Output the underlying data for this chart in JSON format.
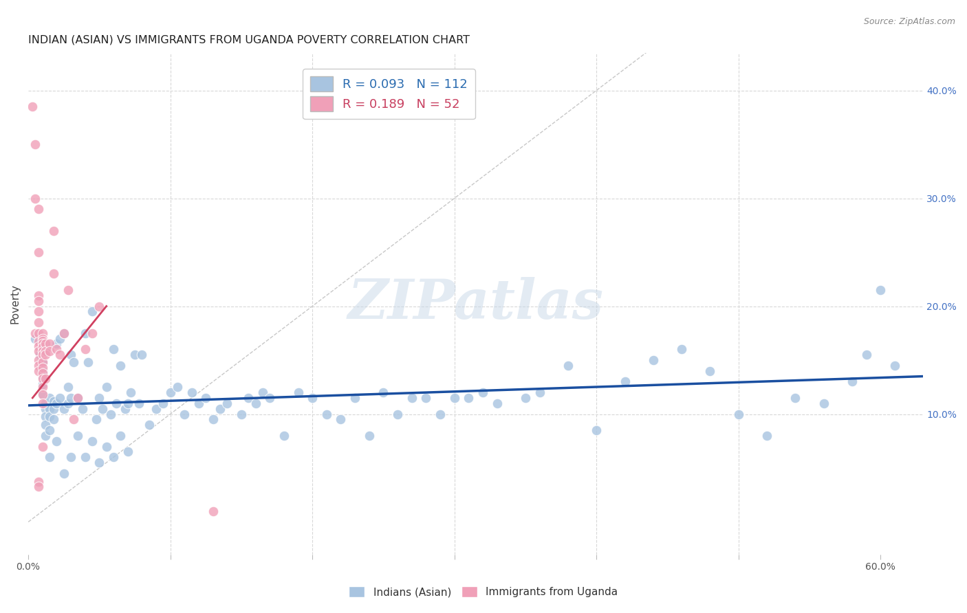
{
  "title": "INDIAN (ASIAN) VS IMMIGRANTS FROM UGANDA POVERTY CORRELATION CHART",
  "source": "Source: ZipAtlas.com",
  "ylabel": "Poverty",
  "xlim": [
    0.0,
    0.63
  ],
  "ylim": [
    -0.03,
    0.435
  ],
  "legend_blue_R": "0.093",
  "legend_blue_N": "112",
  "legend_pink_R": "0.189",
  "legend_pink_N": "52",
  "blue_label": "Indians (Asian)",
  "pink_label": "Immigrants from Uganda",
  "blue_color": "#a8c4e0",
  "blue_line_color": "#1a4fa0",
  "pink_color": "#f0a0b8",
  "pink_line_color": "#d04060",
  "diag_line_color": "#c8c8c8",
  "background_color": "#ffffff",
  "grid_color": "#d8d8d8",
  "blue_scatter_x": [
    0.005,
    0.008,
    0.01,
    0.01,
    0.01,
    0.01,
    0.01,
    0.012,
    0.012,
    0.012,
    0.012,
    0.012,
    0.012,
    0.012,
    0.015,
    0.015,
    0.015,
    0.015,
    0.018,
    0.018,
    0.018,
    0.02,
    0.02,
    0.022,
    0.022,
    0.025,
    0.025,
    0.028,
    0.028,
    0.03,
    0.03,
    0.032,
    0.035,
    0.038,
    0.04,
    0.042,
    0.045,
    0.048,
    0.05,
    0.052,
    0.055,
    0.058,
    0.06,
    0.062,
    0.065,
    0.068,
    0.07,
    0.072,
    0.075,
    0.078,
    0.08,
    0.085,
    0.09,
    0.095,
    0.1,
    0.105,
    0.11,
    0.115,
    0.12,
    0.125,
    0.13,
    0.135,
    0.14,
    0.15,
    0.155,
    0.16,
    0.165,
    0.17,
    0.18,
    0.19,
    0.2,
    0.21,
    0.22,
    0.23,
    0.24,
    0.25,
    0.26,
    0.27,
    0.28,
    0.29,
    0.3,
    0.31,
    0.32,
    0.33,
    0.35,
    0.36,
    0.38,
    0.4,
    0.42,
    0.44,
    0.46,
    0.48,
    0.5,
    0.52,
    0.54,
    0.56,
    0.58,
    0.59,
    0.6,
    0.61,
    0.015,
    0.02,
    0.025,
    0.03,
    0.035,
    0.04,
    0.045,
    0.05,
    0.055,
    0.06,
    0.065,
    0.07
  ],
  "blue_scatter_y": [
    0.17,
    0.155,
    0.148,
    0.14,
    0.135,
    0.128,
    0.118,
    0.165,
    0.158,
    0.11,
    0.105,
    0.098,
    0.09,
    0.08,
    0.115,
    0.105,
    0.098,
    0.085,
    0.112,
    0.105,
    0.095,
    0.165,
    0.11,
    0.17,
    0.115,
    0.175,
    0.105,
    0.125,
    0.11,
    0.155,
    0.115,
    0.148,
    0.115,
    0.105,
    0.175,
    0.148,
    0.195,
    0.095,
    0.115,
    0.105,
    0.125,
    0.1,
    0.16,
    0.11,
    0.145,
    0.105,
    0.11,
    0.12,
    0.155,
    0.11,
    0.155,
    0.09,
    0.105,
    0.11,
    0.12,
    0.125,
    0.1,
    0.12,
    0.11,
    0.115,
    0.095,
    0.105,
    0.11,
    0.1,
    0.115,
    0.11,
    0.12,
    0.115,
    0.08,
    0.12,
    0.115,
    0.1,
    0.095,
    0.115,
    0.08,
    0.12,
    0.1,
    0.115,
    0.115,
    0.1,
    0.115,
    0.115,
    0.12,
    0.11,
    0.115,
    0.12,
    0.145,
    0.085,
    0.13,
    0.15,
    0.16,
    0.14,
    0.1,
    0.08,
    0.115,
    0.11,
    0.13,
    0.155,
    0.215,
    0.145,
    0.06,
    0.075,
    0.045,
    0.06,
    0.08,
    0.06,
    0.075,
    0.055,
    0.07,
    0.06,
    0.08,
    0.065
  ],
  "pink_scatter_x": [
    0.003,
    0.005,
    0.005,
    0.005,
    0.007,
    0.007,
    0.007,
    0.007,
    0.007,
    0.007,
    0.007,
    0.007,
    0.007,
    0.007,
    0.007,
    0.007,
    0.007,
    0.01,
    0.01,
    0.01,
    0.01,
    0.01,
    0.01,
    0.01,
    0.01,
    0.01,
    0.01,
    0.01,
    0.01,
    0.01,
    0.01,
    0.01,
    0.012,
    0.012,
    0.012,
    0.012,
    0.015,
    0.015,
    0.018,
    0.018,
    0.02,
    0.022,
    0.025,
    0.028,
    0.032,
    0.035,
    0.04,
    0.045,
    0.05,
    0.13,
    0.007,
    0.007
  ],
  "pink_scatter_y": [
    0.385,
    0.35,
    0.3,
    0.175,
    0.29,
    0.25,
    0.21,
    0.205,
    0.195,
    0.185,
    0.175,
    0.167,
    0.163,
    0.158,
    0.15,
    0.145,
    0.14,
    0.175,
    0.17,
    0.168,
    0.165,
    0.162,
    0.158,
    0.155,
    0.148,
    0.143,
    0.138,
    0.133,
    0.125,
    0.118,
    0.11,
    0.07,
    0.165,
    0.158,
    0.155,
    0.133,
    0.165,
    0.158,
    0.27,
    0.23,
    0.16,
    0.155,
    0.175,
    0.215,
    0.095,
    0.115,
    0.16,
    0.175,
    0.2,
    0.01,
    0.037,
    0.033
  ],
  "blue_regline_x": [
    0.0,
    0.63
  ],
  "blue_regline_y": [
    0.108,
    0.135
  ],
  "pink_regline_x": [
    0.003,
    0.055
  ],
  "pink_regline_y": [
    0.115,
    0.2
  ]
}
